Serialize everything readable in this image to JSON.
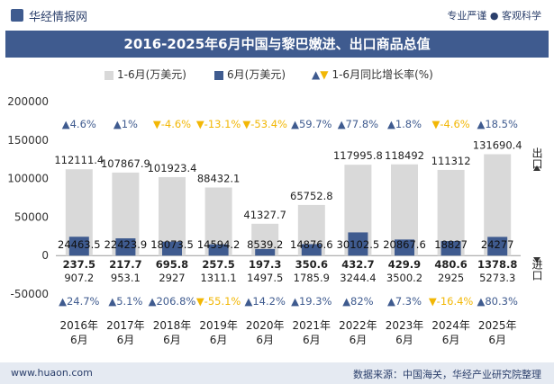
{
  "header": {
    "brand": "华经情报网",
    "tagline": "专业严谨 ● 客观科学"
  },
  "footer": {
    "left": "www.huaon.com",
    "right": "数据来源：中国海关，华经产业研究院整理"
  },
  "legend": {
    "series1": "1-6月(万美元)",
    "series2": "6月(万美元)",
    "growth": "1-6月同比增长率(%)"
  },
  "side_labels": {
    "export": "出口",
    "import": "进口"
  },
  "colors": {
    "bar_light": "#d9d9d9",
    "bar_dark": "#3f5b8f",
    "up": "#3f5b8f",
    "down": "#f2b705",
    "title_bg": "#3f5b8f"
  },
  "chart_data": {
    "type": "bar",
    "title": "2016-2025年6月中国与黎巴嫩进、出口商品总值",
    "categories": [
      "2016年\n6月",
      "2017年\n6月",
      "2018年\n6月",
      "2019年\n6月",
      "2020年\n6月",
      "2021年\n6月",
      "2022年\n6月",
      "2023年\n6月",
      "2024年\n6月",
      "2025年\n6月"
    ],
    "ylim": [
      -50000,
      200000
    ],
    "yticks": [
      200000,
      150000,
      100000,
      50000,
      0,
      -50000
    ],
    "series": [
      {
        "name": "1-6月(万美元)",
        "kind": "export",
        "values": [
          112111.4,
          107867.9,
          101923.4,
          88432.1,
          41327.7,
          65752.8,
          117995.8,
          118492,
          111312,
          131690.4
        ]
      },
      {
        "name": "6月(万美元)",
        "kind": "export",
        "values": [
          24463.5,
          22423.9,
          18073.5,
          14594.2,
          8539.2,
          14876.6,
          30102.5,
          20867.6,
          18827,
          24277
        ]
      },
      {
        "name": "6月(万美元)",
        "kind": "import",
        "values": [
          237.5,
          217.7,
          695.8,
          257.5,
          197.3,
          350.6,
          432.7,
          429.9,
          480.6,
          1378.8
        ]
      },
      {
        "name": "1-6月(万美元)",
        "kind": "import",
        "values": [
          907.2,
          953.1,
          2927,
          1311.1,
          1497.5,
          1785.9,
          3244.4,
          3500.2,
          2925,
          5273.3
        ]
      }
    ],
    "export_growth": [
      "4.6%",
      "1%",
      "-4.6%",
      "-13.1%",
      "-53.4%",
      "59.7%",
      "77.8%",
      "1.8%",
      "-4.6%",
      "18.5%"
    ],
    "import_growth": [
      "24.7%",
      "5.1%",
      "206.8%",
      "-55.1%",
      "14.2%",
      "19.3%",
      "82%",
      "7.3%",
      "-16.4%",
      "80.3%"
    ],
    "grid": false,
    "legend_position": "top"
  }
}
